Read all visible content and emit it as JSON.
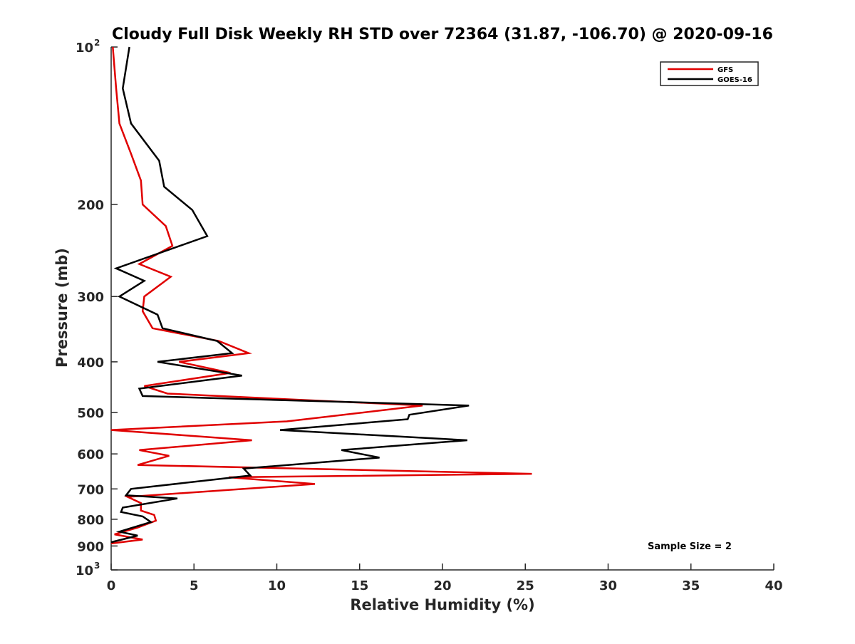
{
  "chart_data": {
    "type": "line",
    "title": "Cloudy Full Disk Weekly RH STD over 72364 (31.87, -106.70) @ 2020-09-16",
    "xlabel": "Relative Humidity (%)",
    "ylabel": "Pressure (mb)",
    "xlim": [
      0,
      40
    ],
    "ylim": [
      1000,
      100
    ],
    "y_scale": "log",
    "grid": false,
    "legend_position": "top-right",
    "x_ticks": [
      "0",
      "5",
      "10",
      "15",
      "20",
      "25",
      "30",
      "35",
      "40"
    ],
    "y_ticks": [
      {
        "value": 100,
        "base": "10",
        "exp": "2"
      },
      {
        "value": 200,
        "label": "200"
      },
      {
        "value": 300,
        "label": "300"
      },
      {
        "value": 400,
        "label": "400"
      },
      {
        "value": 500,
        "label": "500"
      },
      {
        "value": 600,
        "label": "600"
      },
      {
        "value": 700,
        "label": "700"
      },
      {
        "value": 800,
        "label": "800"
      },
      {
        "value": 900,
        "label": "900"
      },
      {
        "value": 1000,
        "base": "10",
        "exp": "3"
      }
    ],
    "annotation": "Sample Size = 2",
    "series": [
      {
        "name": "GFS",
        "color": "#e00000",
        "points": [
          [
            0.1,
            100
          ],
          [
            0.3,
            120
          ],
          [
            0.5,
            140
          ],
          [
            1.2,
            160
          ],
          [
            1.8,
            180
          ],
          [
            1.9,
            200
          ],
          [
            3.3,
            220
          ],
          [
            3.7,
            240
          ],
          [
            1.7,
            260
          ],
          [
            3.6,
            275
          ],
          [
            2.0,
            300
          ],
          [
            1.9,
            320
          ],
          [
            2.5,
            345
          ],
          [
            6.5,
            365
          ],
          [
            8.3,
            385
          ],
          [
            4.1,
            400
          ],
          [
            7.2,
            420
          ],
          [
            2.0,
            445
          ],
          [
            3.4,
            460
          ],
          [
            18.8,
            485
          ],
          [
            10.6,
            520
          ],
          [
            0.0,
            540
          ],
          [
            8.5,
            565
          ],
          [
            1.7,
            590
          ],
          [
            3.5,
            605
          ],
          [
            1.6,
            630
          ],
          [
            25.4,
            655
          ],
          [
            7.1,
            665
          ],
          [
            12.3,
            685
          ],
          [
            1.0,
            725
          ],
          [
            1.8,
            745
          ],
          [
            1.8,
            770
          ],
          [
            2.6,
            785
          ],
          [
            2.7,
            805
          ],
          [
            1.6,
            830
          ],
          [
            0.2,
            855
          ],
          [
            1.9,
            875
          ],
          [
            0.0,
            890
          ]
        ]
      },
      {
        "name": "GOES-16",
        "color": "#000000",
        "points": [
          [
            1.1,
            100
          ],
          [
            0.7,
            120
          ],
          [
            1.2,
            140
          ],
          [
            2.9,
            165
          ],
          [
            3.2,
            185
          ],
          [
            4.9,
            205
          ],
          [
            5.8,
            230
          ],
          [
            0.3,
            265
          ],
          [
            2.0,
            280
          ],
          [
            0.5,
            300
          ],
          [
            2.8,
            325
          ],
          [
            3.1,
            345
          ],
          [
            6.4,
            365
          ],
          [
            7.3,
            385
          ],
          [
            2.8,
            400
          ],
          [
            7.9,
            425
          ],
          [
            1.7,
            450
          ],
          [
            1.9,
            465
          ],
          [
            21.6,
            485
          ],
          [
            18.0,
            505
          ],
          [
            17.9,
            515
          ],
          [
            10.2,
            540
          ],
          [
            21.5,
            565
          ],
          [
            13.9,
            590
          ],
          [
            16.2,
            610
          ],
          [
            8.0,
            640
          ],
          [
            8.4,
            660
          ],
          [
            1.2,
            700
          ],
          [
            0.9,
            720
          ],
          [
            4.0,
            730
          ],
          [
            0.7,
            760
          ],
          [
            0.6,
            775
          ],
          [
            1.9,
            790
          ],
          [
            2.4,
            810
          ],
          [
            0.5,
            845
          ],
          [
            1.6,
            860
          ],
          [
            0.0,
            885
          ]
        ]
      }
    ]
  }
}
